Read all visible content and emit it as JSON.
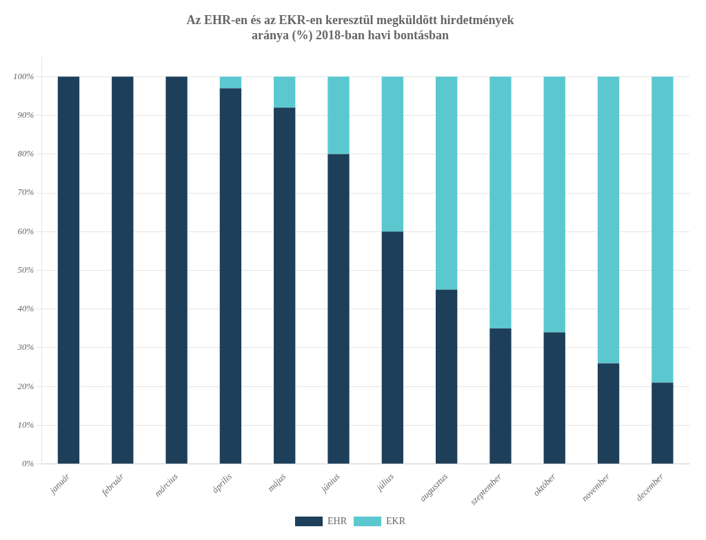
{
  "chart_data": {
    "type": "bar",
    "stacked": true,
    "title": "Az EHR-en és az EKR-en keresztül megküldött hirdetmények\naránya (%) 2018-ban havi bontásban",
    "categories": [
      "január",
      "február",
      "március",
      "április",
      "május",
      "június",
      "július",
      "augusztus",
      "szeptember",
      "október",
      "november",
      "december"
    ],
    "series": [
      {
        "name": "EHR",
        "color": "#1e3f5a",
        "values": [
          100,
          100,
          100,
          97,
          92,
          80,
          60,
          45,
          35,
          34,
          26,
          21
        ]
      },
      {
        "name": "EKR",
        "color": "#5bc8d0",
        "values": [
          0,
          0,
          0,
          3,
          8,
          20,
          40,
          55,
          65,
          66,
          74,
          79
        ]
      }
    ],
    "ylim": [
      0,
      105
    ],
    "yticks": [
      {
        "value": 0,
        "label": "0%"
      },
      {
        "value": 10,
        "label": "10%"
      },
      {
        "value": 20,
        "label": "20%"
      },
      {
        "value": 30,
        "label": "30%"
      },
      {
        "value": 40,
        "label": "40%"
      },
      {
        "value": 50,
        "label": "50%"
      },
      {
        "value": 60,
        "label": "60%"
      },
      {
        "value": 70,
        "label": "70%"
      },
      {
        "value": 80,
        "label": "80%"
      },
      {
        "value": 90,
        "label": "90%"
      },
      {
        "value": 100,
        "label": "100%"
      }
    ],
    "grid": true,
    "legend": "bottom"
  }
}
